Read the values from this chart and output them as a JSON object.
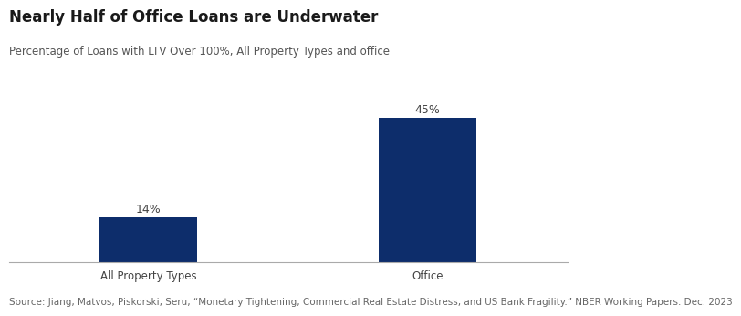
{
  "title": "Nearly Half of Office Loans are Underwater",
  "subtitle": "Percentage of Loans with LTV Over 100%, All Property Types and office",
  "categories": [
    "All Property Types",
    "Office"
  ],
  "values": [
    14,
    45
  ],
  "bar_color": "#0d2d6b",
  "bar_labels": [
    "14%",
    "45%"
  ],
  "source": "Source: Jiang, Matvos, Piskorski, Seru, “Monetary Tightening, Commercial Real Estate Distress, and US Bank Fragility.” NBER Working Papers. Dec. 2023",
  "ylim": [
    0,
    52
  ],
  "background_color": "#ffffff",
  "title_fontsize": 12,
  "subtitle_fontsize": 8.5,
  "label_fontsize": 9,
  "tick_fontsize": 8.5,
  "source_fontsize": 7.5
}
